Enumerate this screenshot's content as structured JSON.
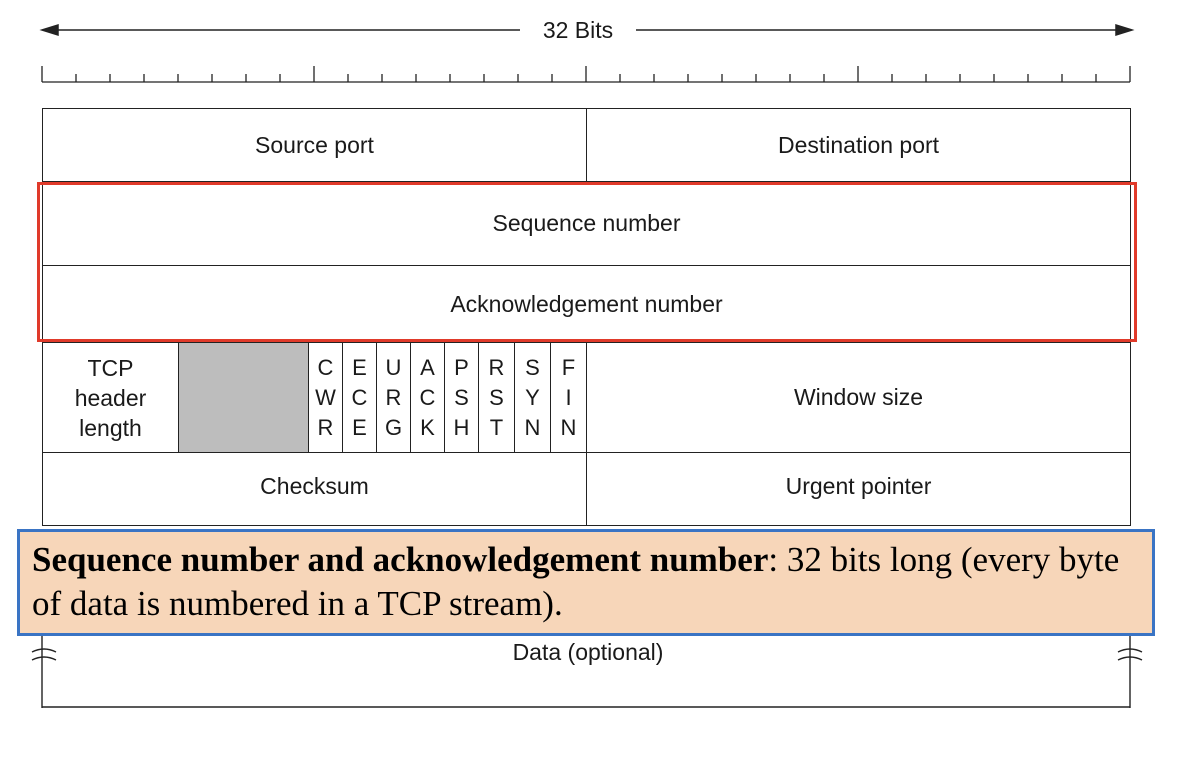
{
  "header": {
    "bits_label": "32 Bits"
  },
  "rows": {
    "source_port": "Source port",
    "destination_port": "Destination port",
    "sequence_number": "Sequence number",
    "acknowledgement_number": "Acknowledgement number",
    "tcp_header_length": [
      "TCP",
      "header",
      "length"
    ],
    "flags": [
      [
        "C",
        "W",
        "R"
      ],
      [
        "E",
        "C",
        "E"
      ],
      [
        "U",
        "R",
        "G"
      ],
      [
        "A",
        "C",
        "K"
      ],
      [
        "P",
        "S",
        "H"
      ],
      [
        "R",
        "S",
        "T"
      ],
      [
        "S",
        "Y",
        "N"
      ],
      [
        "F",
        "I",
        "N"
      ]
    ],
    "window_size": "Window size",
    "checksum": "Checksum",
    "urgent_pointer": "Urgent pointer",
    "data": "Data (optional)"
  },
  "note": {
    "bold_text": "Sequence number and acknowledgement number",
    "rest_text": ": 32 bits long (every byte of data is numbered in a TCP stream)."
  },
  "colors": {
    "highlight_border": "#e03a2a",
    "note_border": "#3a74c4",
    "note_background": "#f7d6b9",
    "reserved_fill": "#bdbdbd"
  }
}
